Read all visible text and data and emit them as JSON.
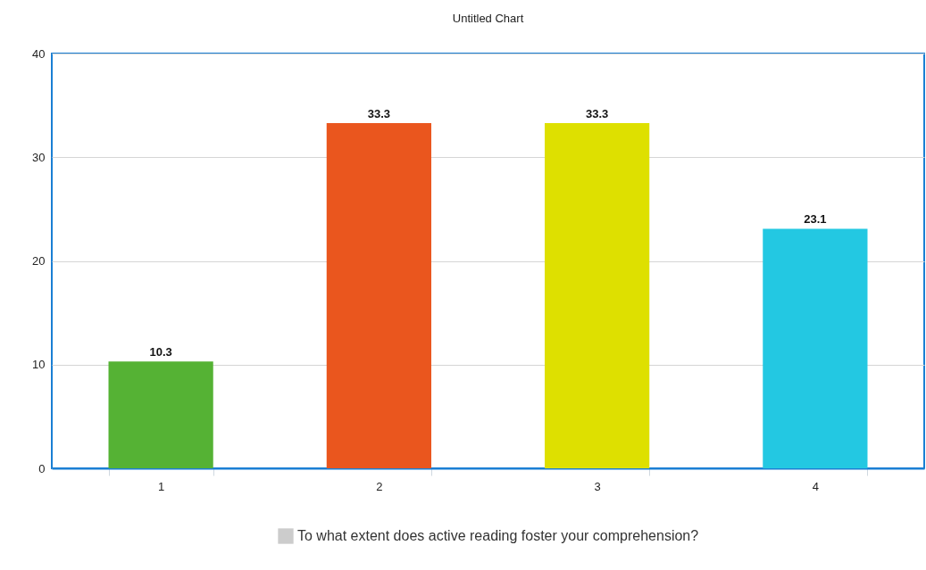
{
  "chart_data": {
    "type": "bar",
    "title": "Untitled Chart",
    "categories": [
      "1",
      "2",
      "3",
      "4"
    ],
    "series": [
      {
        "name": "To what extent does active reading foster your comprehension?",
        "color": "#cccccc",
        "colors": [
          "#55b234",
          "#ea561e",
          "#dee000",
          "#23c8e2"
        ],
        "values": [
          10.3,
          33.3,
          33.3,
          23.1
        ]
      }
    ],
    "ylim": [
      0,
      40
    ],
    "yticks": [
      0,
      10,
      20,
      30,
      40
    ],
    "grid": "y",
    "legend": "bottom",
    "data_labels": true
  }
}
